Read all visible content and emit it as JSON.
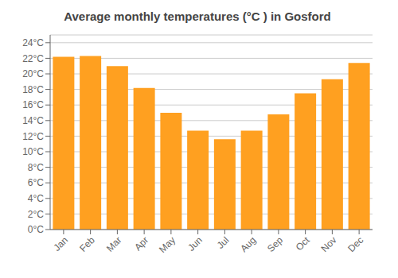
{
  "chart_data": {
    "type": "bar",
    "title": "Average monthly temperatures (°C ) in Gosford",
    "categories": [
      "Jan",
      "Feb",
      "Mar",
      "Apr",
      "May",
      "Jun",
      "Jul",
      "Aug",
      "Sep",
      "Oct",
      "Nov",
      "Dec"
    ],
    "values": [
      22.2,
      22.3,
      21.0,
      18.2,
      15.0,
      12.7,
      11.6,
      12.7,
      14.8,
      17.5,
      19.3,
      21.4
    ],
    "color": "#FFA020",
    "ylim": [
      0,
      25
    ],
    "yticks": [
      {
        "value": 0,
        "label": "0°C"
      },
      {
        "value": 2,
        "label": "2°C"
      },
      {
        "value": 4,
        "label": "4°C"
      },
      {
        "value": 6,
        "label": "6°C"
      },
      {
        "value": 8,
        "label": "8°C"
      },
      {
        "value": 10,
        "label": "10°C"
      },
      {
        "value": 12,
        "label": "12°C"
      },
      {
        "value": 14,
        "label": "14°C"
      },
      {
        "value": 16,
        "label": "16°C"
      },
      {
        "value": 18,
        "label": "18°C"
      },
      {
        "value": 20,
        "label": "20°C"
      },
      {
        "value": 22,
        "label": "22°C"
      },
      {
        "value": 24,
        "label": "24°C"
      }
    ],
    "grid": true
  }
}
